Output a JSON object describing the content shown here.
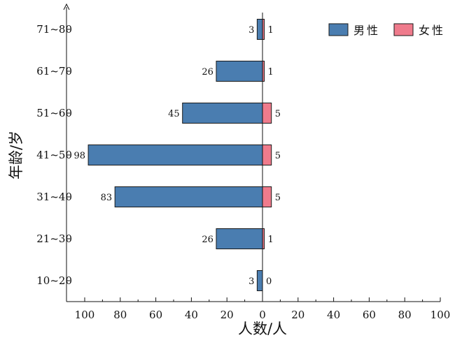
{
  "chart_data": {
    "type": "bar",
    "orientation": "horizontal",
    "layout": "population-pyramid",
    "categories": [
      "10~20",
      "21~30",
      "31~40",
      "41~50",
      "51~60",
      "61~70",
      "71~80"
    ],
    "series": [
      {
        "name": "男性",
        "side": "left",
        "color": "#4a7db0",
        "values": [
          3,
          26,
          83,
          98,
          45,
          26,
          3
        ]
      },
      {
        "name": "女性",
        "side": "right",
        "color": "#ef7b8c",
        "values": [
          0,
          1,
          5,
          5,
          5,
          1,
          1
        ]
      }
    ],
    "xlabel": "人数/人",
    "ylabel": "年龄/岁",
    "x_ticks": [
      "100",
      "80",
      "60",
      "40",
      "20",
      "0",
      "20",
      "40",
      "60",
      "80",
      "100"
    ],
    "xlim": [
      -100,
      100
    ],
    "grid": false,
    "legend_position": "top-right"
  }
}
